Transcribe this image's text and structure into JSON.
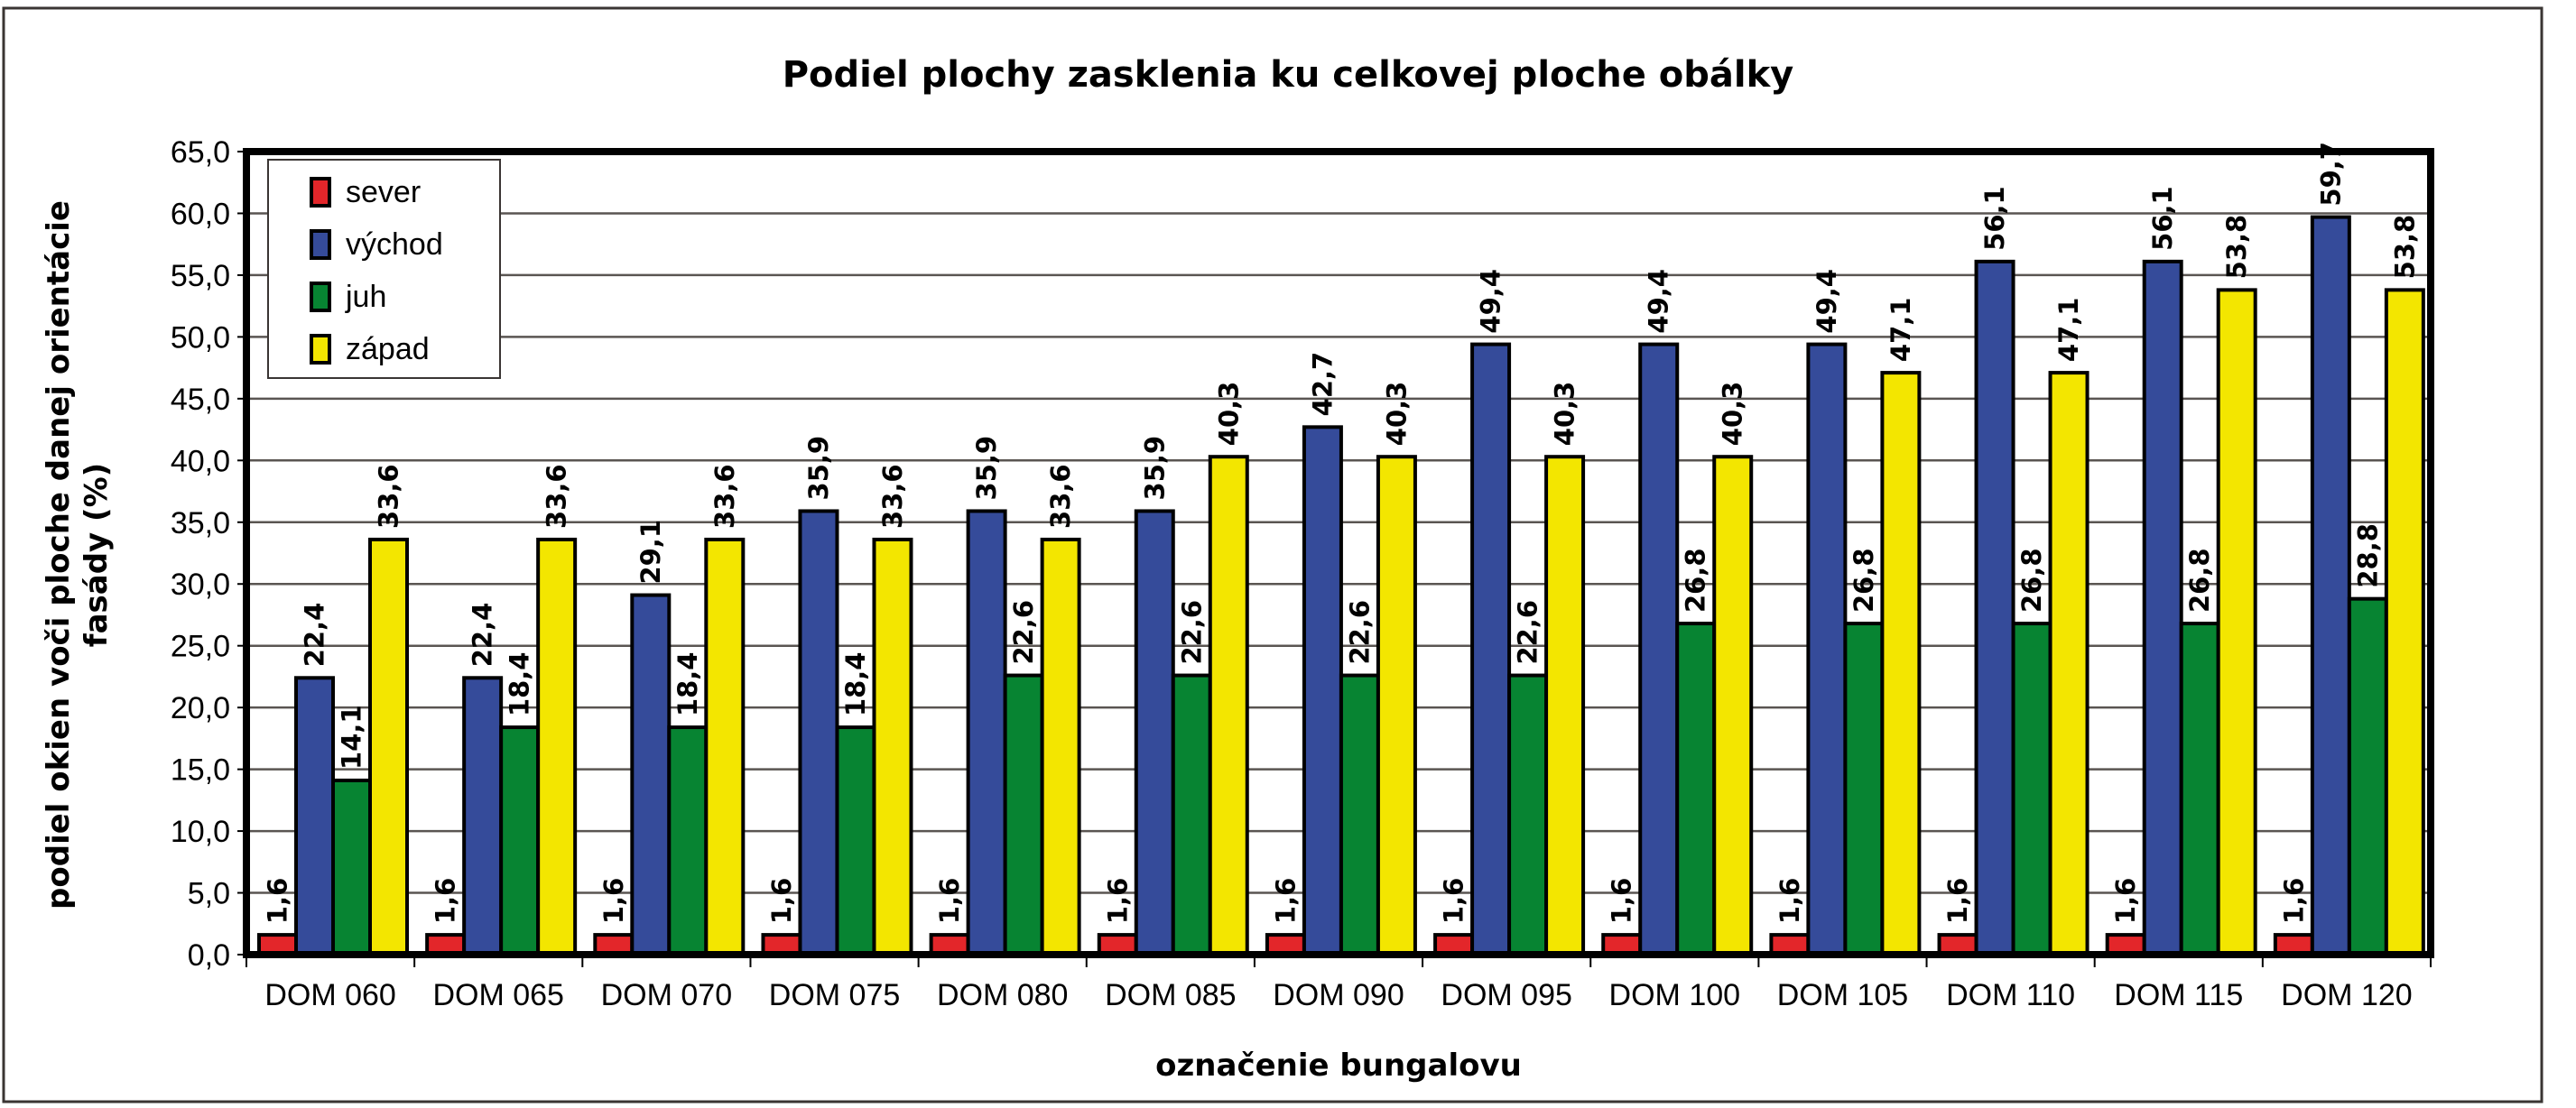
{
  "chart_data": {
    "type": "bar",
    "title": "Podiel plochy zasklenia ku celkovej ploche obálky",
    "xlabel": "označenie bungalovu",
    "ylabel": "podiel okien voči ploche danej orientácie fasády (%)",
    "ylim": [
      0,
      65
    ],
    "ytick_step": 5,
    "yticks": [
      "0,0",
      "5,0",
      "10,0",
      "15,0",
      "20,0",
      "25,0",
      "30,0",
      "35,0",
      "40,0",
      "45,0",
      "50,0",
      "55,0",
      "60,0",
      "65,0"
    ],
    "grid": true,
    "legend_position": "top-left",
    "categories": [
      "DOM 060",
      "DOM 065",
      "DOM 070",
      "DOM 075",
      "DOM 080",
      "DOM 085",
      "DOM 090",
      "DOM 095",
      "DOM 100",
      "DOM 105",
      "DOM 110",
      "DOM 115",
      "DOM 120"
    ],
    "series": [
      {
        "name": "sever",
        "color": "#e3262a",
        "values": [
          1.6,
          1.6,
          1.6,
          1.6,
          1.6,
          1.6,
          1.6,
          1.6,
          1.6,
          1.6,
          1.6,
          1.6,
          1.6
        ]
      },
      {
        "name": "východ",
        "color": "#354b9a",
        "values": [
          22.4,
          22.4,
          29.1,
          35.9,
          35.9,
          35.9,
          42.7,
          49.4,
          49.4,
          49.4,
          56.1,
          56.1,
          59.7
        ]
      },
      {
        "name": "juh",
        "color": "#078432",
        "values": [
          14.1,
          18.4,
          18.4,
          18.4,
          22.6,
          22.6,
          22.6,
          22.6,
          26.8,
          26.8,
          26.8,
          26.8,
          28.8
        ]
      },
      {
        "name": "západ",
        "color": "#f3e600",
        "values": [
          33.6,
          33.6,
          33.6,
          33.6,
          33.6,
          40.3,
          40.3,
          40.3,
          40.3,
          47.1,
          47.1,
          53.8,
          53.8
        ]
      }
    ]
  }
}
